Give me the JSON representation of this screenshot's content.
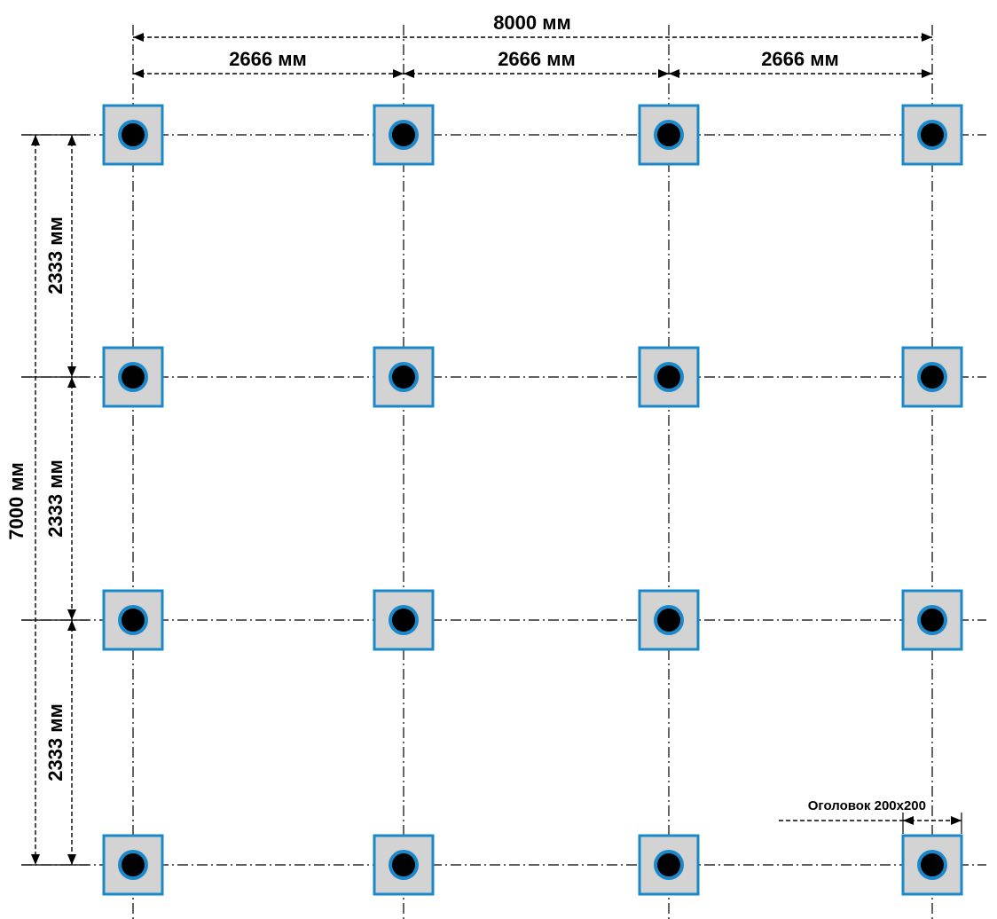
{
  "plan": {
    "columns": 4,
    "rows": 4,
    "overall_width_label": "8000 мм",
    "overall_height_label": "7000 мм",
    "column_spacing_labels": [
      "2666 мм",
      "2666 мм",
      "2666 мм"
    ],
    "row_spacing_labels": [
      "2333 мм",
      "2333 мм",
      "2333 мм"
    ],
    "head_label": "Оголовок 200х200"
  },
  "colors": {
    "cap_fill": "#d3d3d3",
    "cap_stroke": "#1a88c9",
    "pile_ring": "#1a88c9",
    "pile_core": "#000000",
    "lines": "#000000"
  }
}
